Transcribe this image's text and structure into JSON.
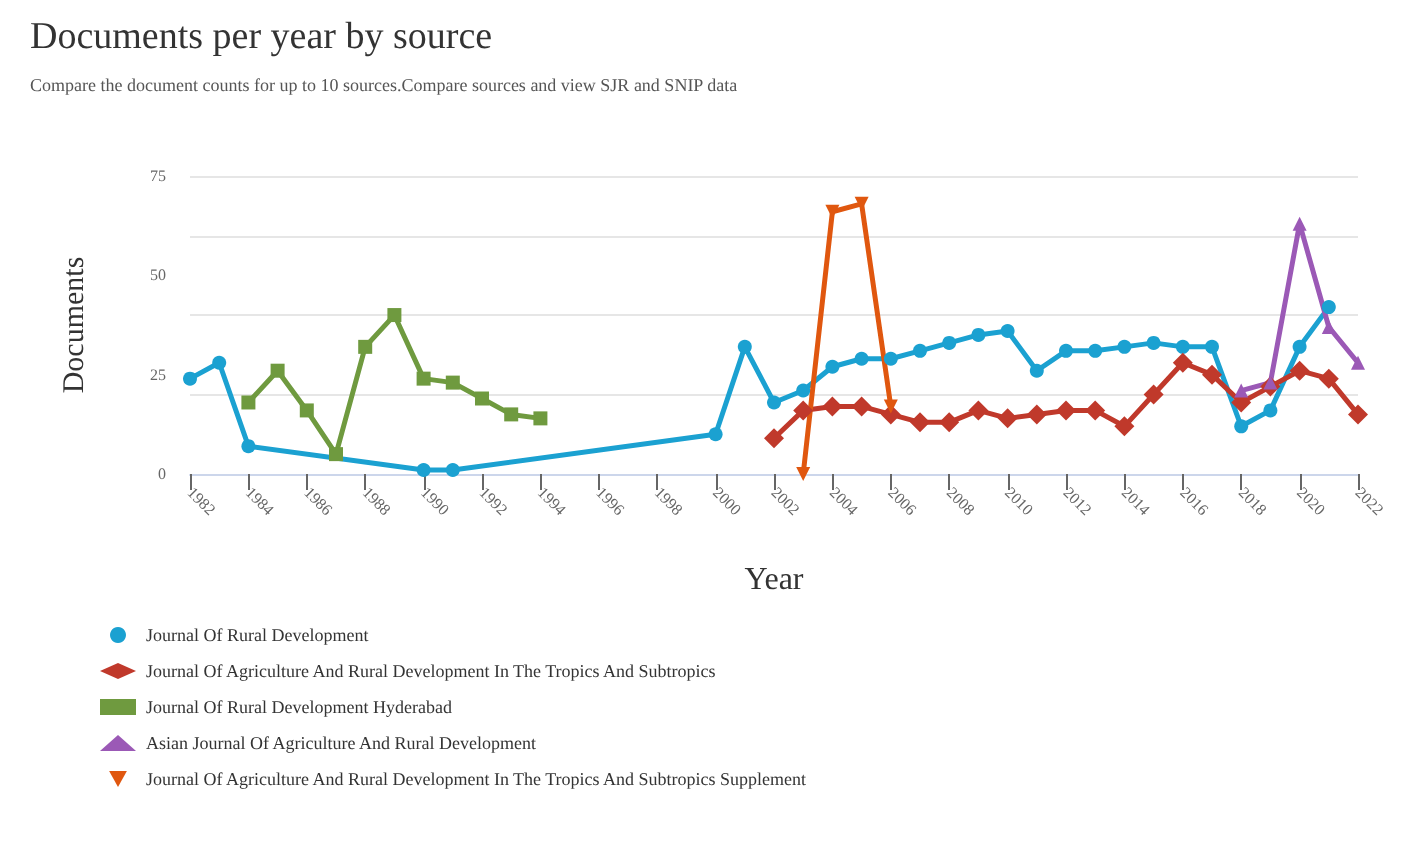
{
  "chart_data": {
    "type": "line",
    "title": "Documents per year by source",
    "subtitle": "Compare the document counts for up to 10 sources.Compare sources and view SJR and SNIP data",
    "xlabel": "Year",
    "ylabel": "Documents",
    "xlim": [
      1982,
      2022
    ],
    "xticks": [
      1982,
      1984,
      1986,
      1988,
      1990,
      1992,
      1994,
      1996,
      1998,
      2000,
      2002,
      2004,
      2006,
      2008,
      2010,
      2012,
      2014,
      2016,
      2018,
      2020,
      2022
    ],
    "ylim": [
      0,
      75
    ],
    "yticks": [
      0,
      25,
      50,
      75
    ],
    "grid": "y",
    "legend": "bottom",
    "series": [
      {
        "name": "Journal Of Rural Development",
        "color": "#1ba1d1",
        "marker": "circle",
        "x": [
          1982,
          1983,
          1984,
          1990,
          1991,
          2000,
          2001,
          2002,
          2003,
          2004,
          2005,
          2006,
          2007,
          2008,
          2009,
          2010,
          2011,
          2012,
          2013,
          2014,
          2015,
          2016,
          2017,
          2018,
          2019,
          2020,
          2021
        ],
        "values": [
          24,
          28,
          7,
          1,
          1,
          10,
          32,
          18,
          21,
          27,
          29,
          29,
          31,
          33,
          35,
          36,
          26,
          31,
          31,
          32,
          33,
          32,
          32,
          12,
          16,
          32,
          42
        ]
      },
      {
        "name": "Journal Of Agriculture And Rural Development In The Tropics And Subtropics",
        "color": "#c0392b",
        "marker": "diamond",
        "x": [
          2002,
          2003,
          2004,
          2005,
          2006,
          2007,
          2008,
          2009,
          2010,
          2011,
          2012,
          2013,
          2014,
          2015,
          2016,
          2017,
          2018,
          2019,
          2020,
          2021,
          2022
        ],
        "values": [
          9,
          16,
          17,
          17,
          15,
          13,
          13,
          16,
          14,
          15,
          16,
          16,
          12,
          20,
          28,
          25,
          18,
          22,
          26,
          24,
          15
        ]
      },
      {
        "name": "Journal Of Rural Development Hyderabad",
        "color": "#6f9a3f",
        "marker": "square",
        "x": [
          1984,
          1985,
          1986,
          1987,
          1988,
          1989,
          1990,
          1991,
          1992,
          1993,
          1994
        ],
        "values": [
          18,
          26,
          16,
          5,
          32,
          40,
          24,
          23,
          19,
          15,
          14
        ]
      },
      {
        "name": "Asian Journal Of Agriculture And Rural Development",
        "color": "#9b59b6",
        "marker": "triangle",
        "x": [
          2018,
          2019,
          2020,
          2021,
          2022
        ],
        "values": [
          21,
          23,
          63,
          37,
          28
        ]
      },
      {
        "name": "Journal Of Agriculture And Rural Development In The Tropics And Subtropics Supplement",
        "color": "#e0570f",
        "marker": "triangle-down",
        "x": [
          2003,
          2004,
          2005,
          2006
        ],
        "values": [
          0,
          66,
          68,
          17
        ]
      }
    ]
  }
}
